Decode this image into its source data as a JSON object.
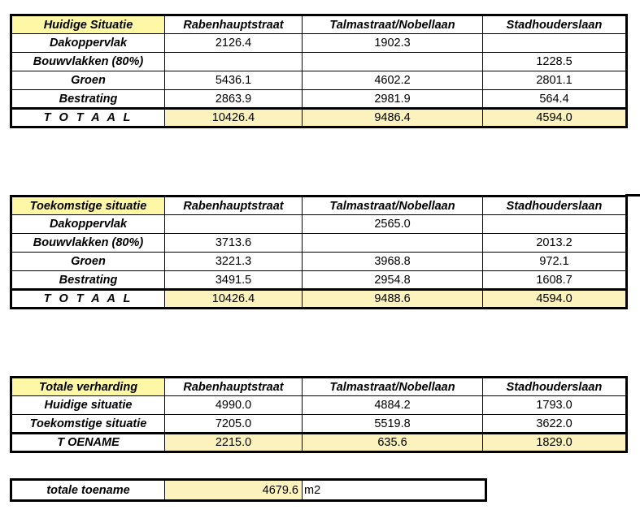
{
  "columns": [
    "Rabenhauptstraat",
    "Talmastraat/Nobellaan",
    "Stadhouderslaan"
  ],
  "table1": {
    "title": "Huidige Situatie",
    "rows": [
      {
        "label": "Dakoppervlak",
        "values": [
          "2126.4",
          "1902.3",
          ""
        ]
      },
      {
        "label": "Bouwvlakken (80%)",
        "values": [
          "",
          "",
          "1228.5"
        ]
      },
      {
        "label": "Groen",
        "values": [
          "5436.1",
          "4602.2",
          "2801.1"
        ]
      },
      {
        "label": "Bestrating",
        "values": [
          "2863.9",
          "2981.9",
          "564.4"
        ]
      }
    ],
    "total": {
      "label": "T O T A A L",
      "values": [
        "10426.4",
        "9486.4",
        "4594.0"
      ]
    }
  },
  "table2": {
    "title": "Toekomstige situatie",
    "rows": [
      {
        "label": "Dakoppervlak",
        "values": [
          "",
          "2565.0",
          ""
        ]
      },
      {
        "label": "Bouwvlakken (80%)",
        "values": [
          "3713.6",
          "",
          "2013.2"
        ]
      },
      {
        "label": "Groen",
        "values": [
          "3221.3",
          "3968.8",
          "972.1"
        ]
      },
      {
        "label": "Bestrating",
        "values": [
          "3491.5",
          "2954.8",
          "1608.7"
        ]
      }
    ],
    "total": {
      "label": "T O T A A L",
      "values": [
        "10426.4",
        "9488.6",
        "4594.0"
      ]
    }
  },
  "table3": {
    "title": "Totale verharding",
    "rows": [
      {
        "label": "Huidige situatie",
        "values": [
          "4990.0",
          "4884.2",
          "1793.0"
        ]
      },
      {
        "label": "Toekomstige situatie",
        "values": [
          "7205.0",
          "5519.8",
          "3622.0"
        ]
      }
    ],
    "total": {
      "label": "T OENAME",
      "values": [
        "2215.0",
        "635.6",
        "1829.0"
      ]
    }
  },
  "summary": {
    "label": "totale toename",
    "value": "4679.6",
    "unit": "m2"
  },
  "colors": {
    "header_yellow": "#fdf7a6",
    "total_yellow": "#fcf2bd"
  }
}
